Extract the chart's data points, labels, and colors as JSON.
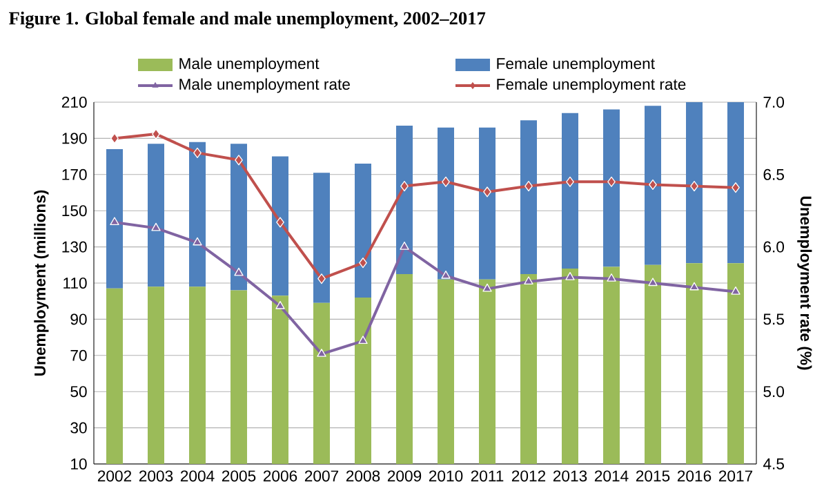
{
  "chart_data": {
    "type": "bar",
    "title": "Figure 1. Global female and male unemployment, 2002–2017",
    "ylabel": "Unemployment (millions)",
    "y2label": "Unemployment rate (%)",
    "categories": [
      "2002",
      "2003",
      "2004",
      "2005",
      "2006",
      "2007",
      "2008",
      "2009",
      "2010",
      "2011",
      "2012",
      "2013",
      "2014",
      "2015",
      "2016",
      "2017"
    ],
    "stacked": true,
    "series": [
      {
        "name": "Male unemployment",
        "color": "#9bbb59",
        "values": [
          107,
          108,
          108,
          106,
          103,
          99,
          102,
          115,
          112,
          112,
          115,
          118,
          119,
          120,
          121,
          121
        ]
      },
      {
        "name": "Female unemployment",
        "color": "#4f81bd",
        "values": [
          77,
          79,
          80,
          81,
          77,
          72,
          74,
          82,
          84,
          84,
          85,
          86,
          87,
          88,
          89,
          89
        ]
      },
      {
        "name": "Male unemployment rate",
        "color": "#8064a2",
        "type": "line",
        "axis": "y2",
        "marker": "triangle",
        "values": [
          6.17,
          6.13,
          6.03,
          5.82,
          5.59,
          5.26,
          5.35,
          6.0,
          5.8,
          5.71,
          5.76,
          5.79,
          5.78,
          5.75,
          5.72,
          5.69
        ]
      },
      {
        "name": "Female unemployment rate",
        "color": "#c0504d",
        "type": "line",
        "axis": "y2",
        "marker": "diamond",
        "values": [
          6.75,
          6.78,
          6.65,
          6.6,
          6.17,
          5.78,
          5.89,
          6.42,
          6.45,
          6.38,
          6.42,
          6.45,
          6.45,
          6.43,
          6.42,
          6.41
        ]
      }
    ],
    "ylim": [
      10,
      210
    ],
    "yticks": [
      10,
      30,
      50,
      70,
      90,
      110,
      130,
      150,
      170,
      190,
      210
    ],
    "y2lim": [
      4.5,
      7.0
    ],
    "y2ticks": [
      4.5,
      {
        "value": 5,
        "label": "5.0"
      },
      5.5,
      {
        "value": 6,
        "label": "6.0"
      },
      6.5,
      {
        "value": 7,
        "label": "7.0"
      }
    ],
    "grid": "y",
    "legend": "top"
  }
}
